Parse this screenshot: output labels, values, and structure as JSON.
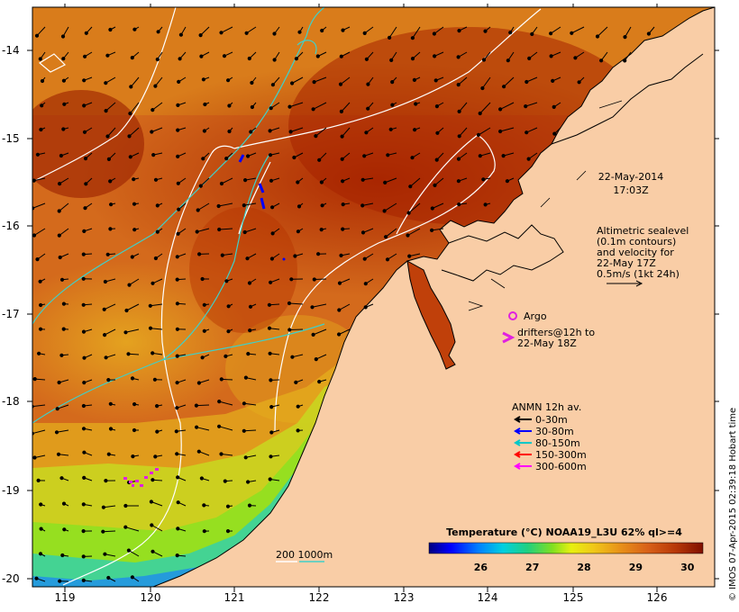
{
  "datetime": {
    "date": "22-May-2014",
    "time": "17:03Z"
  },
  "altimetry": {
    "lines": [
      "Altimetric sealevel",
      "(0.1m contours)",
      "and velocity for",
      "22-May 17Z"
    ],
    "scale_label": "0.5m/s (1kt 24h)"
  },
  "argo": {
    "label": "Argo",
    "color": "#e020e0"
  },
  "drifters": {
    "lines": [
      "drifters@12h to",
      "22-May 18Z"
    ],
    "color": "#e020e0"
  },
  "anmn": {
    "title": "ANMN 12h av.",
    "items": [
      {
        "label": "0-30m",
        "color": "#000000"
      },
      {
        "label": "30-80m",
        "color": "#0000ff"
      },
      {
        "label": "80-150m",
        "color": "#00c8c8"
      },
      {
        "label": "150-300m",
        "color": "#ff0000"
      },
      {
        "label": "300-600m",
        "color": "#ff00ff"
      }
    ]
  },
  "isobath": {
    "label": "200  1000m",
    "colors": [
      "#ffffff",
      "#40d0c8"
    ]
  },
  "colorbar": {
    "title": "Temperature (°C) NOAA19_L3U 62% ql>=4",
    "ticks": [
      "26",
      "27",
      "28",
      "29",
      "30"
    ],
    "range": [
      25.0,
      30.3
    ]
  },
  "axes": {
    "lon_ticks": [
      "119",
      "120",
      "121",
      "122",
      "123",
      "124",
      "125",
      "126"
    ],
    "lat_ticks": [
      "-14",
      "-15",
      "-16",
      "-17",
      "-18",
      "-19",
      "-20"
    ],
    "lon_range": [
      118.6,
      126.7
    ],
    "lat_range": [
      -20.1,
      -13.55
    ]
  },
  "credit": "© IMOS 07-Apr-2015 02:39:18 Hobart time",
  "colors": {
    "land": "#f9cda6",
    "sea_warm": "#b42d00",
    "sea_mid": "#d2661a",
    "sea_cool": "#e2a018",
    "shelf_green": "#a8e020",
    "shelf_cyan": "#20c0e0"
  }
}
